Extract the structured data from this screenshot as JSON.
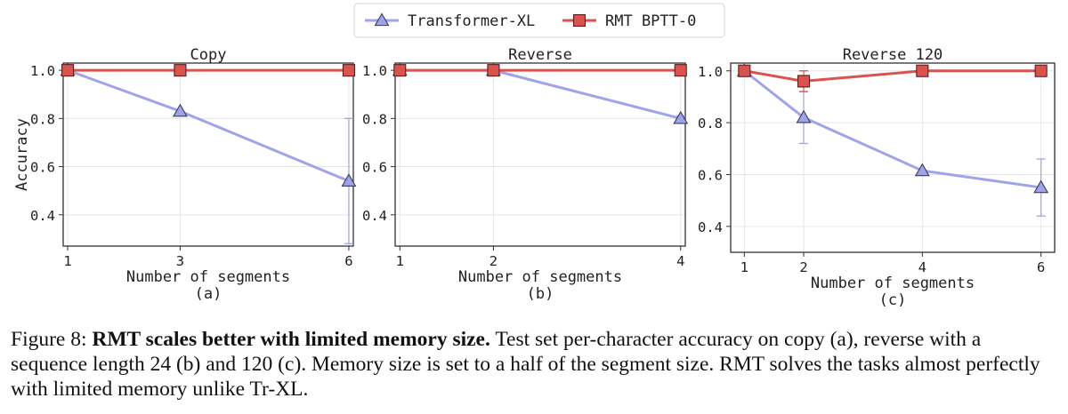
{
  "legend": {
    "entries": [
      {
        "name": "Transformer-XL",
        "color": "#9fa4e8",
        "marker": "triangle"
      },
      {
        "name": "RMT BPTT-0",
        "color": "#d9534f",
        "marker": "square"
      }
    ]
  },
  "chart_data": [
    {
      "type": "line",
      "title": "Copy",
      "xlabel": "Number of segments",
      "ylabel": "Accuracy",
      "sublabel": "(a)",
      "x": [
        1,
        3,
        6
      ],
      "xticks": [
        1,
        3,
        6
      ],
      "xlim": [
        0.92,
        6.08
      ],
      "ylim": [
        0.27,
        1.03
      ],
      "yticks": [
        0.4,
        0.6,
        0.8,
        1.0
      ],
      "yticklabels": [
        "0.4",
        "0.6",
        "0.8",
        "1.0"
      ],
      "grid": true,
      "series": [
        {
          "name": "Transformer-XL",
          "values": [
            1.0,
            0.83,
            0.54
          ],
          "err": [
            0,
            0,
            0.26
          ]
        },
        {
          "name": "RMT BPTT-0",
          "values": [
            1.0,
            1.0,
            1.0
          ],
          "err": [
            0,
            0,
            0
          ]
        }
      ]
    },
    {
      "type": "line",
      "title": "Reverse",
      "xlabel": "Number of segments",
      "ylabel": "",
      "sublabel": "(b)",
      "x": [
        1,
        2,
        4
      ],
      "xticks": [
        1,
        2,
        4
      ],
      "xlim": [
        0.95,
        4.05
      ],
      "ylim": [
        0.27,
        1.03
      ],
      "yticks": [
        0.4,
        0.6,
        0.8,
        1.0
      ],
      "yticklabels": [
        "0.4",
        "0.6",
        "0.8",
        "1.0"
      ],
      "grid": true,
      "series": [
        {
          "name": "Transformer-XL",
          "values": [
            1.0,
            1.0,
            0.8
          ],
          "err": [
            0,
            0,
            0.01
          ]
        },
        {
          "name": "RMT BPTT-0",
          "values": [
            1.0,
            1.0,
            1.0
          ],
          "err": [
            0,
            0,
            0
          ]
        }
      ]
    },
    {
      "type": "line",
      "title": "Reverse 120",
      "xlabel": "Number of segments",
      "ylabel": "",
      "sublabel": "(c)",
      "x": [
        1,
        2,
        4,
        6
      ],
      "xticks": [
        1,
        2,
        4,
        6
      ],
      "xlim": [
        0.77,
        6.23
      ],
      "ylim": [
        0.3,
        1.03
      ],
      "yticks": [
        0.4,
        0.6,
        0.8,
        1.0
      ],
      "yticklabels": [
        "0.4",
        "0.6",
        "0.8",
        "1.0"
      ],
      "grid": true,
      "series": [
        {
          "name": "Transformer-XL",
          "values": [
            1.0,
            0.82,
            0.615,
            0.55
          ],
          "err": [
            0,
            0.1,
            0,
            0.11
          ]
        },
        {
          "name": "RMT BPTT-0",
          "values": [
            1.0,
            0.96,
            1.0,
            1.0
          ],
          "err": [
            0,
            0.04,
            0,
            0
          ]
        }
      ]
    }
  ],
  "caption": {
    "label": "Figure 8: ",
    "bold": "RMT scales better with limited memory size.",
    "text": " Test set per-character accuracy on copy (a), reverse with a sequence length 24 (b) and 120 (c). Memory size is set to a half of the segment size. RMT solves the tasks almost perfectly with limited memory unlike Tr-XL."
  }
}
